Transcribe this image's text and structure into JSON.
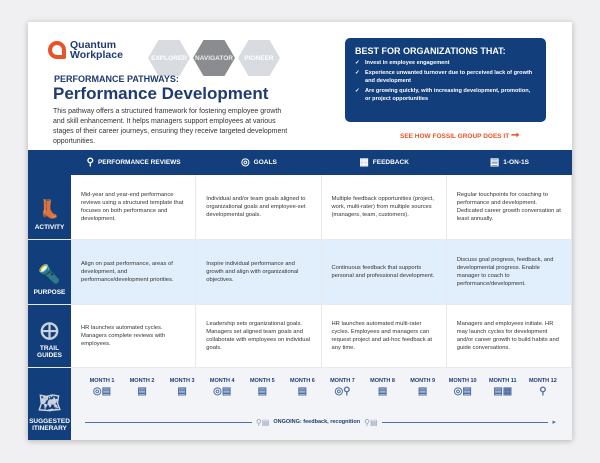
{
  "brand": {
    "name_line1": "Quantum",
    "name_line2": "Workplace",
    "accent": "#e8542a",
    "primary": "#123f7c"
  },
  "badges": [
    {
      "label": "EXPLORER",
      "active": false
    },
    {
      "label": "NAVIGATOR",
      "active": true
    },
    {
      "label": "PIONEER",
      "active": false
    }
  ],
  "kicker": "PERFORMANCE PATHWAYS:",
  "title": "Performance Development",
  "intro": "This pathway offers a structured framework for fostering employee growth and skill enhancement. It helps managers support employees at various stages of their career journeys, ensuring they receive targeted development opportunities.",
  "best": {
    "heading": "BEST FOR ORGANIZATIONS THAT:",
    "items": [
      "Invest in employee engagement",
      "Experience unwanted turnover due to perceived lack of growth and development",
      "Are growing quickly, with increasing development, promotion, or project opportunities"
    ]
  },
  "cta": "SEE HOW FOSSIL GROUP DOES IT",
  "columns": [
    {
      "label": "PERFORMANCE REVIEWS",
      "icon": "review-icon"
    },
    {
      "label": "GOALS",
      "icon": "goals-icon"
    },
    {
      "label": "FEEDBACK",
      "icon": "feedback-icon"
    },
    {
      "label": "1-ON-1S",
      "icon": "one-on-one-icon"
    }
  ],
  "rows": [
    {
      "label": "ACTIVITY",
      "icon": "boots-icon",
      "cells": [
        "Mid-year and year-end performance reviews using a structured template that focuses on both performance and development.",
        "Individual and/or team goals aligned to organizational goals and employee-set developmental goals.",
        "Multiple feedback opportunities (project, work, multi-rater) from multiple sources (managers, team, customers).",
        "Regular touchpoints for coaching to performance and development. Dedicated career growth conversation at least annually."
      ]
    },
    {
      "label": "PURPOSE",
      "icon": "flashlight-icon",
      "cells": [
        "Align on past performance, areas of development, and performance/development priorities.",
        "Inspire individual performance and growth and align with organizational objectives.",
        "Continuous feedback that supports personal and professional development.",
        "Discuss goal progress, feedback, and developmental progress. Enable manager to coach to performance/development."
      ]
    },
    {
      "label": "TRAIL GUIDES",
      "icon": "compass-icon",
      "cells": [
        "HR launches automated cycles. Managers complete reviews with employees.",
        "Leadership sets organizational goals. Managers set aligned team goals and collaborate with employees on individual goals.",
        "HR launches automated multi-rater cycles. Employees and managers can request project and ad-hoc feedback at any time.",
        "Managers and employees initiate. HR may launch cycles for development and/or career growth to build habits and guide conversations."
      ]
    }
  ],
  "itinerary": {
    "label": "SUGGESTED ITINERARY",
    "icon": "map-icon",
    "ongoing": "ONGOING: feedback, recognition",
    "months": [
      {
        "label": "MONTH 1",
        "icons": [
          "goals",
          "one-on-one"
        ]
      },
      {
        "label": "MONTH 2",
        "icons": [
          "one-on-one"
        ]
      },
      {
        "label": "MONTH 3",
        "icons": [
          "one-on-one"
        ]
      },
      {
        "label": "MONTH 4",
        "icons": [
          "goals",
          "one-on-one"
        ]
      },
      {
        "label": "MONTH 5",
        "icons": [
          "one-on-one"
        ]
      },
      {
        "label": "MONTH 6",
        "icons": [
          "one-on-one"
        ]
      },
      {
        "label": "MONTH 7",
        "icons": [
          "goals",
          "review"
        ]
      },
      {
        "label": "MONTH 8",
        "icons": [
          "one-on-one"
        ]
      },
      {
        "label": "MONTH 9",
        "icons": [
          "one-on-one"
        ]
      },
      {
        "label": "MONTH 10",
        "icons": [
          "goals",
          "one-on-one"
        ]
      },
      {
        "label": "MONTH 11",
        "icons": [
          "one-on-one",
          "feedback"
        ]
      },
      {
        "label": "MONTH 12",
        "icons": [
          "review"
        ]
      }
    ]
  }
}
